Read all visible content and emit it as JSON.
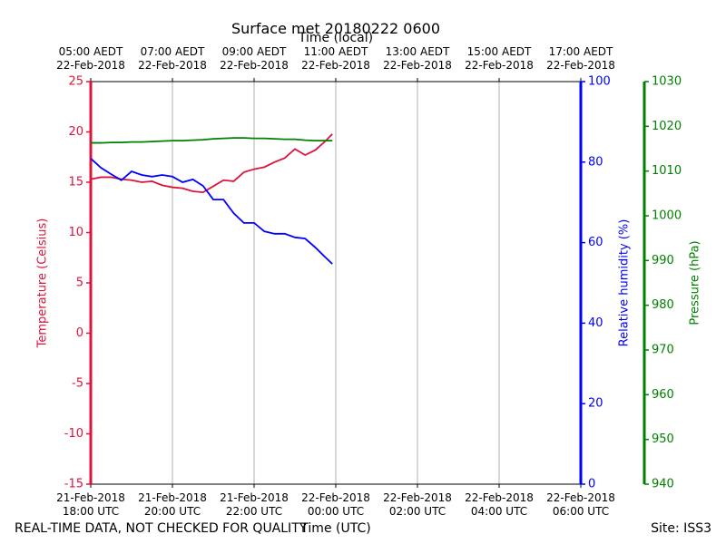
{
  "chart_data": {
    "type": "line",
    "title": "Surface met 20180222 0600",
    "xlabel": "Time (UTC)",
    "x2label": "Time (local)",
    "ylabel": "Temperature (Celsius)",
    "y2label": "Relative humidity (%)",
    "y3label": "Pressure (hPa)",
    "note_left": "REAL-TIME DATA, NOT CHECKED FOR QUALITY",
    "note_right": "Site: ISS3",
    "grid": true,
    "x": [
      "2018-02-21 18:00",
      "2018-02-21 18:15",
      "2018-02-21 18:30",
      "2018-02-21 18:45",
      "2018-02-21 19:00",
      "2018-02-21 19:15",
      "2018-02-21 19:30",
      "2018-02-21 19:45",
      "2018-02-21 20:00",
      "2018-02-21 20:15",
      "2018-02-21 20:30",
      "2018-02-21 20:45",
      "2018-02-21 21:00",
      "2018-02-21 21:15",
      "2018-02-21 21:30",
      "2018-02-21 21:45",
      "2018-02-21 22:00",
      "2018-02-21 22:15",
      "2018-02-21 22:30",
      "2018-02-21 22:45",
      "2018-02-21 23:00",
      "2018-02-21 23:15",
      "2018-02-21 23:30",
      "2018-02-21 23:45",
      "2018-02-21 23:55"
    ],
    "xlim": [
      "2018-02-21 18:00",
      "2018-02-22 06:00"
    ],
    "xticks": [
      {
        "value": "2018-02-21 18:00",
        "label": "21-Feb-2018\n18:00 UTC"
      },
      {
        "value": "2018-02-21 20:00",
        "label": "21-Feb-2018\n20:00 UTC"
      },
      {
        "value": "2018-02-21 22:00",
        "label": "21-Feb-2018\n22:00 UTC"
      },
      {
        "value": "2018-02-22 00:00",
        "label": "22-Feb-2018\n00:00 UTC"
      },
      {
        "value": "2018-02-22 02:00",
        "label": "22-Feb-2018\n02:00 UTC"
      },
      {
        "value": "2018-02-22 04:00",
        "label": "22-Feb-2018\n04:00 UTC"
      },
      {
        "value": "2018-02-22 06:00",
        "label": "22-Feb-2018\n06:00 UTC"
      }
    ],
    "x2ticks": [
      {
        "value": "2018-02-21 18:00",
        "label": "05:00 AEDT\n22-Feb-2018"
      },
      {
        "value": "2018-02-21 20:00",
        "label": "07:00 AEDT\n22-Feb-2018"
      },
      {
        "value": "2018-02-21 22:00",
        "label": "09:00 AEDT\n22-Feb-2018"
      },
      {
        "value": "2018-02-22 00:00",
        "label": "11:00 AEDT\n22-Feb-2018"
      },
      {
        "value": "2018-02-22 02:00",
        "label": "13:00 AEDT\n22-Feb-2018"
      },
      {
        "value": "2018-02-22 04:00",
        "label": "15:00 AEDT\n22-Feb-2018"
      },
      {
        "value": "2018-02-22 06:00",
        "label": "17:00 AEDT\n22-Feb-2018"
      }
    ],
    "ylim": [
      -15,
      25
    ],
    "yticks": [
      -15,
      -10,
      -5,
      0,
      5,
      10,
      15,
      20,
      25
    ],
    "y2lim": [
      0,
      100
    ],
    "y2ticks": [
      0,
      20,
      40,
      60,
      80,
      100
    ],
    "y3lim": [
      940,
      1030
    ],
    "y3ticks": [
      940,
      950,
      960,
      970,
      980,
      990,
      1000,
      1010,
      1020,
      1030
    ],
    "series": [
      {
        "name": "Temperature",
        "color": "#dc143c",
        "axis": "y",
        "values": [
          15.3,
          15.5,
          15.5,
          15.3,
          15.2,
          15.0,
          15.1,
          14.7,
          14.5,
          14.4,
          14.1,
          14.0,
          14.6,
          15.2,
          15.1,
          16.0,
          16.3,
          16.5,
          17.0,
          17.4,
          18.3,
          17.7,
          18.2,
          19.1,
          19.8
        ]
      },
      {
        "name": "Relative humidity",
        "color": "#0000ff",
        "axis": "y2",
        "values": [
          80.9,
          78.6,
          77.0,
          75.5,
          77.7,
          76.8,
          76.4,
          76.8,
          76.4,
          75.0,
          75.7,
          74.1,
          70.7,
          70.7,
          67.3,
          64.9,
          64.9,
          62.8,
          62.2,
          62.2,
          61.3,
          61.0,
          58.8,
          56.3,
          54.7
        ]
      },
      {
        "name": "Pressure",
        "color": "#008000",
        "axis": "y3",
        "values": [
          1016.3,
          1016.3,
          1016.4,
          1016.4,
          1016.5,
          1016.5,
          1016.6,
          1016.7,
          1016.8,
          1016.8,
          1016.9,
          1017.0,
          1017.2,
          1017.3,
          1017.4,
          1017.4,
          1017.3,
          1017.3,
          1017.2,
          1017.1,
          1017.1,
          1016.9,
          1016.8,
          1016.8,
          1016.8
        ]
      }
    ]
  }
}
